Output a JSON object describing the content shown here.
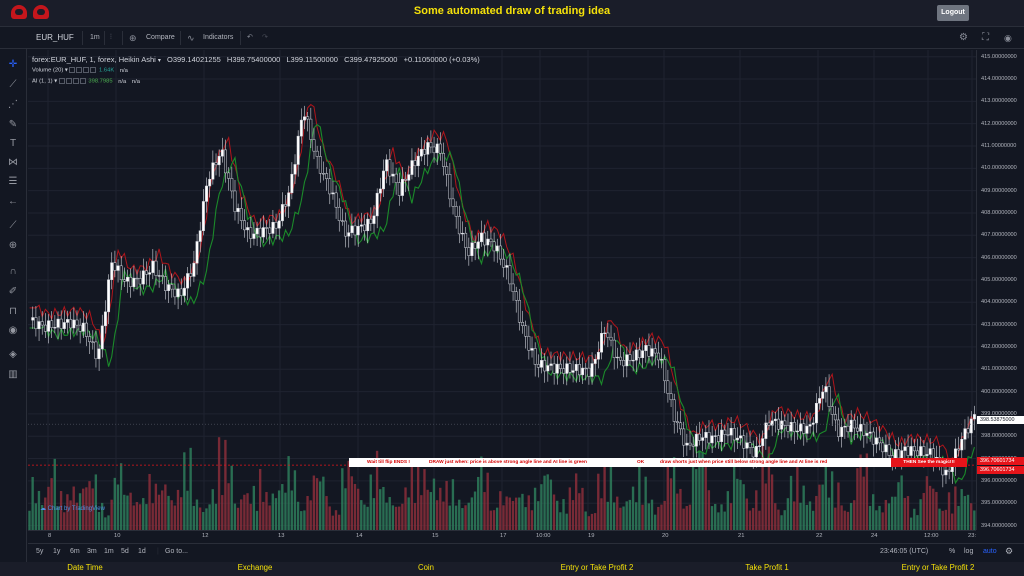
{
  "page": {
    "title": "Some automated draw of trading idea",
    "logout_label": "Logout"
  },
  "toolbar": {
    "symbol": "EUR_HUF",
    "interval": "1m",
    "compare_label": "Compare",
    "indicators_label": "Indicators"
  },
  "legend": {
    "main": "forex:EUR_HUF, 1, forex, Heikin Ashi",
    "open": "O399.14021255",
    "high": "H399.75400000",
    "low": "L399.11500000",
    "close": "C399.47925000",
    "change": "+0.11050000 (+0.03%)",
    "volume_name": "Volume (20)",
    "volume_value": "1.64K",
    "volume_na": "n/a",
    "ai_name": "AI (1, 1)",
    "ai_value": "398.7985",
    "ai_na1": "n/a",
    "ai_na2": "n/a"
  },
  "price_scale": {
    "ticks": [
      "415.00000000",
      "414.00000000",
      "413.00000000",
      "412.00000000",
      "411.00000000",
      "410.00000000",
      "409.00000000",
      "408.00000000",
      "407.00000000",
      "406.00000000",
      "405.00000000",
      "404.00000000",
      "403.00000000",
      "402.00000000",
      "401.00000000",
      "400.00000000",
      "399.00000000",
      "398.00000000",
      "397.00000000",
      "396.00000000",
      "395.00000000",
      "394.00000000"
    ],
    "label_current": "398.53875000",
    "label_red_1": "396.70601734",
    "label_red_2": "396.70601734",
    "current_color": "#ffffff",
    "red_color": "#e5141a"
  },
  "time_scale": {
    "ticks": [
      "8",
      "10",
      "12",
      "13",
      "14",
      "15",
      "17",
      "10:00",
      "19",
      "20",
      "21",
      "22",
      "24",
      "12:00",
      "23:"
    ]
  },
  "bottom_bar": {
    "ranges": [
      "5y",
      "1y",
      "6m",
      "3m",
      "1m",
      "5d",
      "1d"
    ],
    "goto_label": "Go to...",
    "clock": "23:46:05 (UTC)",
    "percent_label": "%",
    "log_label": "log",
    "auto_label": "auto"
  },
  "watermark": "Chart by TradingView",
  "banner": {
    "part1": "Wait till flip ENDS !",
    "part2": "DRAW just when:  price is above strong angle line and AI line is green",
    "part3": "OK",
    "part4": "draw shorts just when price still below strong angle line and AI line is red",
    "cta": "THEN See the magic!!!"
  },
  "footer": {
    "columns": [
      "Date Time",
      "Exchange",
      "Coin",
      "Entry or Take Profit 2",
      "Take Profit 1",
      "Entry or Take Profit 2"
    ]
  },
  "colors": {
    "accent_yellow": "#f5e10a",
    "up_candle": "#ffffff",
    "down_candle": "#131722",
    "ai_green": "#1b8a2a",
    "ai_red": "#b0151b",
    "volume_up": "#2e7d5b",
    "volume_down": "#8b2e3a"
  },
  "chart_data": {
    "type": "line",
    "ylim": [
      393.8,
      415.3
    ],
    "price_series_approx": [
      403.2,
      402.9,
      403.0,
      403.1,
      402.8,
      401.5,
      405.8,
      404.9,
      405.0,
      405.6,
      404.7,
      404.3,
      405.7,
      409.5,
      410.8,
      408.3,
      407.0,
      407.2,
      407.4,
      409.0,
      412.7,
      410.3,
      409.0,
      407.1,
      407.3,
      407.6,
      410.3,
      409.0,
      410.2,
      411.0,
      410.8,
      408.0,
      406.2,
      406.9,
      406.5,
      405.2,
      402.8,
      401.2,
      401.1,
      401.0,
      401.0,
      400.9,
      402.8,
      401.3,
      401.5,
      401.9,
      401.6,
      399.0,
      397.5,
      398.0,
      397.9,
      398.2,
      397.8,
      397.2,
      398.7,
      398.5,
      398.3,
      398.4,
      400.3,
      398.2,
      398.5,
      398.2,
      397.7,
      397.1,
      397.4,
      397.3,
      397.2,
      396.2,
      397.8,
      398.9
    ],
    "volume_series_approx": [
      55,
      90,
      40,
      75,
      60,
      35,
      80,
      45,
      70,
      50,
      65,
      85,
      40,
      55,
      95,
      60,
      45,
      70,
      55,
      80,
      50,
      65,
      40,
      75,
      60,
      85,
      45,
      55,
      70,
      95,
      50,
      60,
      45,
      80,
      55,
      40,
      65,
      50,
      75,
      45,
      60,
      35,
      70,
      55,
      50,
      65,
      40,
      80,
      60,
      95,
      50,
      45,
      70,
      55,
      90,
      40,
      65,
      50,
      75,
      60,
      45,
      85,
      55,
      40,
      70,
      35,
      60,
      50,
      45,
      55
    ]
  }
}
